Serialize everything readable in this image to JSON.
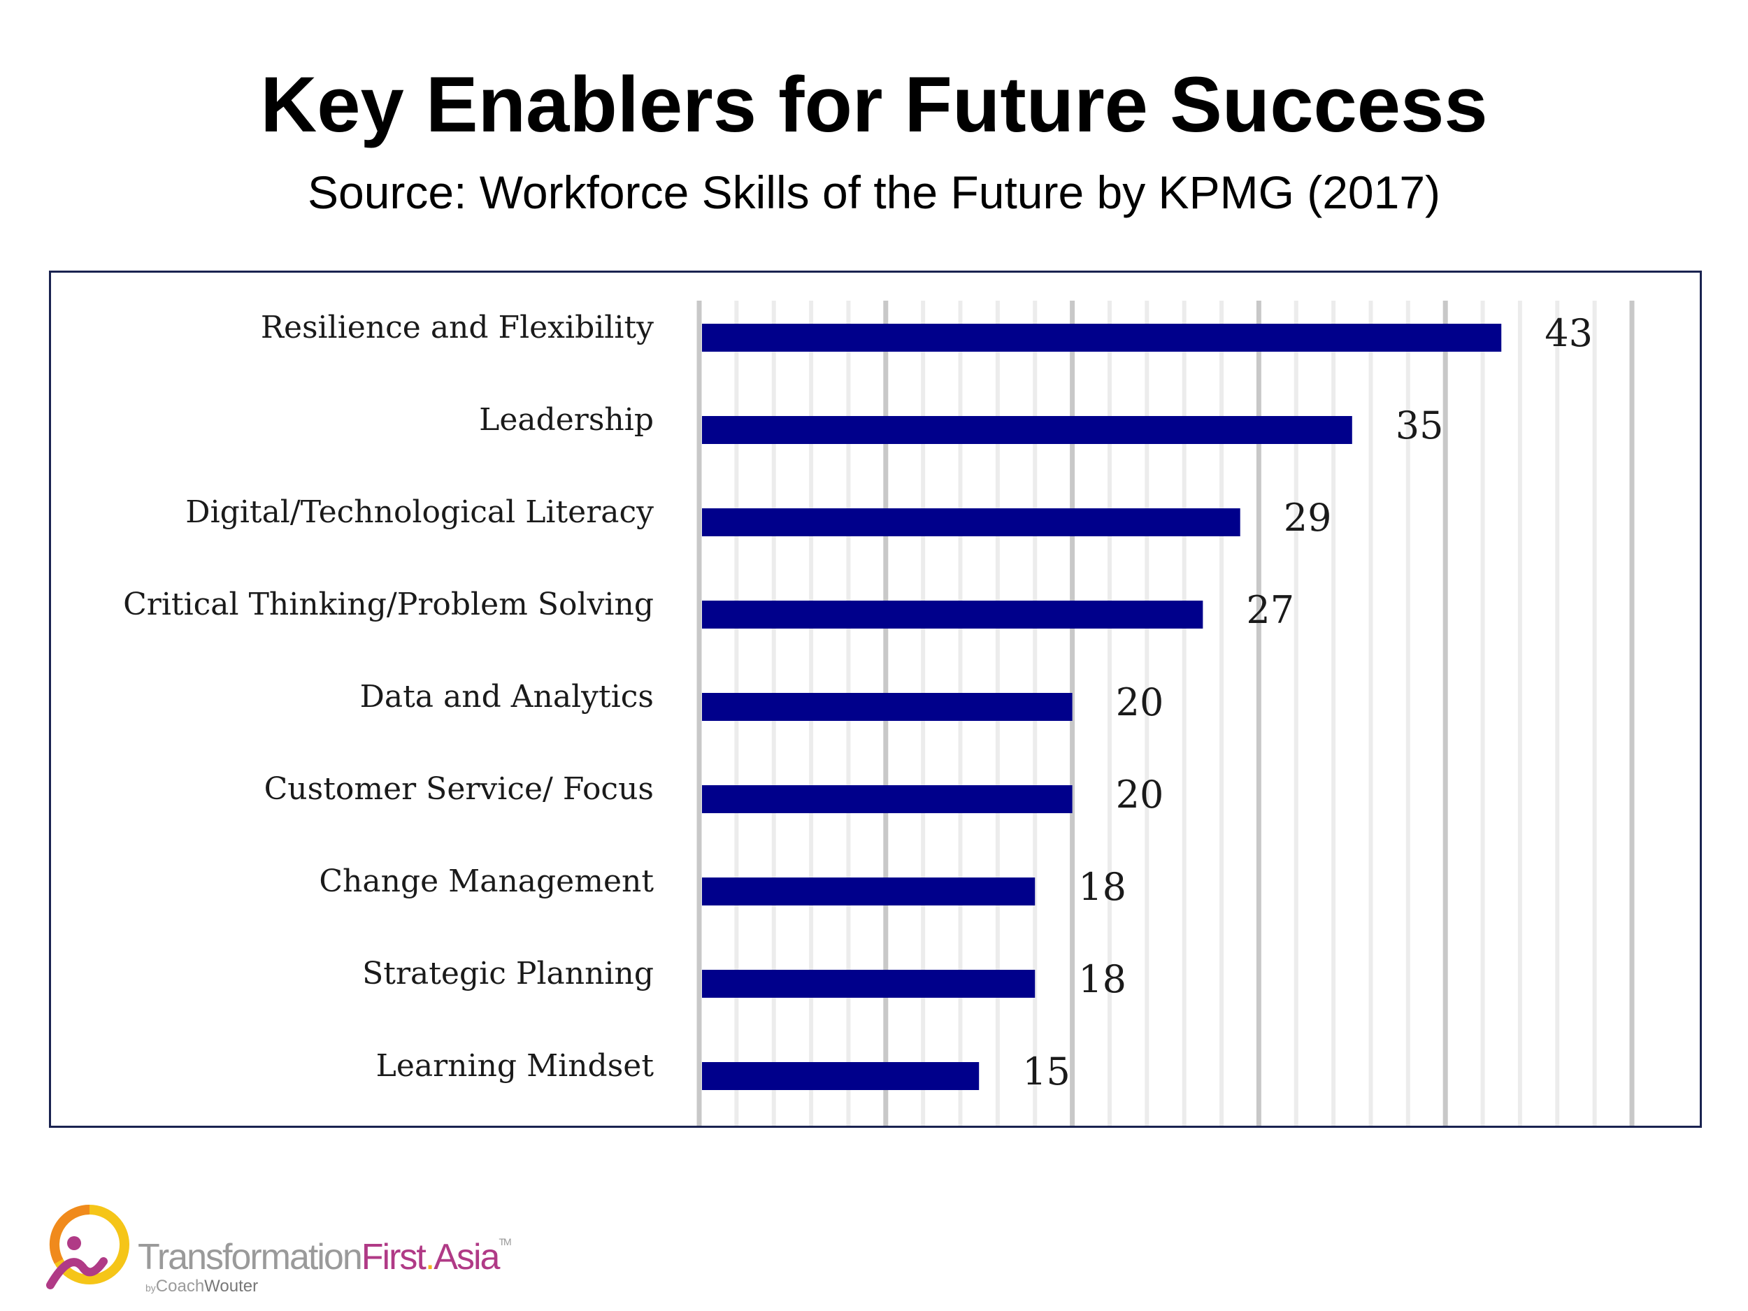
{
  "header": {
    "title": "Key Enablers for Future Success",
    "subtitle": "Source: Workforce Skills of the Future by KPMG (2017)"
  },
  "chart_data": {
    "type": "bar",
    "orientation": "horizontal",
    "categories": [
      "Resilience and Flexibility",
      "Leadership",
      "Digital/Technological Literacy",
      "Critical Thinking/Problem Solving",
      "Data and Analytics",
      "Customer Service/ Focus",
      "Change Management",
      "Strategic Planning",
      "Learning Mindset"
    ],
    "values": [
      43,
      35,
      29,
      27,
      20,
      20,
      18,
      18,
      15
    ],
    "xlim": [
      0,
      50
    ],
    "grid": true,
    "bar_color": "#00008b",
    "grid_major_color": "#c8c8c8",
    "grid_minor_color": "#ececec",
    "data_labels": true
  },
  "logo": {
    "part1": "Transformation",
    "part2": "First",
    "dot": ".",
    "part3": "Asia",
    "tm": "TM",
    "by": "by",
    "sub1": "Coach",
    "sub2": "Wouter"
  }
}
